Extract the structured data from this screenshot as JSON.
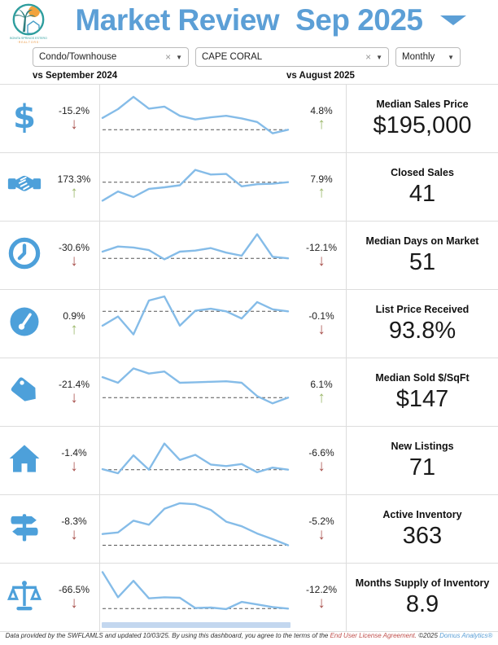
{
  "header": {
    "logo_line1": "BONITA SPRINGS ESTERO",
    "logo_line2": "· R E A L T O R S ·",
    "title": "Market Review",
    "period": "Sep 2025"
  },
  "filters": {
    "property_type": "Condo/Townhouse",
    "location": "CAPE CORAL",
    "frequency": "Monthly",
    "clear_glyph": "×",
    "caret_glyph": "▼"
  },
  "comparison": {
    "left": "vs September 2024",
    "right": "vs August 2025"
  },
  "arrows": {
    "up": "↑",
    "down": "↓"
  },
  "colors": {
    "accent": "#5C9FD6",
    "icon": "#4DA0DA",
    "spark": "#85BCE8",
    "up": "#9CB86B",
    "down": "#A9534F",
    "ref_line": "#555555",
    "scrollbar": "#C3D7EF"
  },
  "metrics": [
    {
      "icon": "dollar-icon",
      "name": "Median Sales Price",
      "value": "$195,000",
      "yoy": "-15.2%",
      "yoy_dir": "down",
      "mom": "4.8%",
      "mom_dir": "up",
      "spark": [
        48,
        65,
        89,
        66,
        70,
        52,
        45,
        49,
        52,
        47,
        40,
        18,
        25
      ],
      "ref": 25
    },
    {
      "icon": "handshake-icon",
      "name": "Closed Sales",
      "value": "41",
      "yoy": "173.3%",
      "yoy_dir": "up",
      "mom": "7.9%",
      "mom_dir": "up",
      "spark": [
        20,
        38,
        27,
        43,
        46,
        50,
        80,
        71,
        72,
        48,
        52,
        53,
        56
      ],
      "ref": 56
    },
    {
      "icon": "clock-icon",
      "name": "Median Days on Market",
      "value": "51",
      "yoy": "-30.6%",
      "yoy_dir": "down",
      "mom": "-12.1%",
      "mom_dir": "down",
      "spark": [
        54,
        64,
        62,
        57,
        39,
        54,
        56,
        61,
        52,
        46,
        88,
        44,
        41
      ],
      "ref": 41
    },
    {
      "icon": "gauge-icon",
      "name": "List Price Received",
      "value": "93.8%",
      "yoy": "0.9%",
      "yoy_dir": "up",
      "mom": "-0.1%",
      "mom_dir": "down",
      "spark": [
        43,
        61,
        26,
        92,
        100,
        43,
        72,
        76,
        71,
        57,
        89,
        75,
        71
      ],
      "ref": 71
    },
    {
      "icon": "tag-icon",
      "name": "Median Sold $/SqFt",
      "value": "$147",
      "yoy": "-21.4%",
      "yoy_dir": "down",
      "mom": "6.1%",
      "mom_dir": "up",
      "spark": [
        76,
        65,
        93,
        83,
        87,
        65,
        66,
        67,
        68,
        65,
        39,
        25,
        36
      ],
      "ref": 36
    },
    {
      "icon": "house-icon",
      "name": "New Listings",
      "value": "71",
      "yoy": "-1.4%",
      "yoy_dir": "down",
      "mom": "-6.6%",
      "mom_dir": "down",
      "spark": [
        30,
        22,
        57,
        29,
        80,
        48,
        58,
        39,
        36,
        40,
        24,
        33,
        29
      ],
      "ref": 29
    },
    {
      "icon": "signpost-icon",
      "name": "Active Inventory",
      "value": "363",
      "yoy": "-8.3%",
      "yoy_dir": "down",
      "mom": "-5.2%",
      "mom_dir": "down",
      "spark": [
        37,
        40,
        63,
        55,
        86,
        97,
        95,
        84,
        61,
        52,
        38,
        27,
        15
      ],
      "ref": 15
    },
    {
      "icon": "scales-icon",
      "name": "Months Supply of Inventory",
      "value": "8.9",
      "yoy": "-66.5%",
      "yoy_dir": "down",
      "mom": "-12.2%",
      "mom_dir": "down",
      "spark": [
        96,
        47,
        79,
        45,
        47,
        46,
        26,
        27,
        24,
        38,
        33,
        28,
        25
      ],
      "ref": 25,
      "has_scrollbar": true
    }
  ],
  "footer": {
    "text1": "Data provided by the SWFLAMLS and updated 10/03/25.  By using this dashboard, you agree to the terms of the ",
    "eula_link": "End User License Agreement.",
    "text2": "  ©2025 ",
    "domus_link": "Domus Analytics®"
  }
}
